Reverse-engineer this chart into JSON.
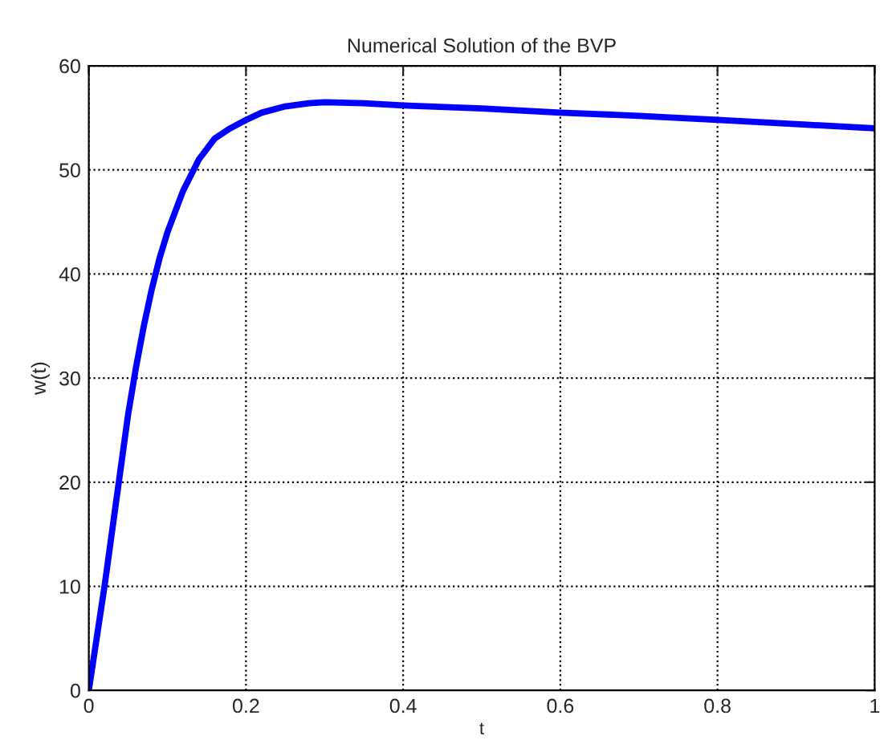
{
  "chart_data": {
    "type": "line",
    "title": "Numerical Solution of the BVP",
    "xlabel": "t",
    "ylabel": "w(t)",
    "x": [
      0,
      0.01,
      0.02,
      0.03,
      0.04,
      0.05,
      0.06,
      0.07,
      0.08,
      0.09,
      0.1,
      0.12,
      0.14,
      0.16,
      0.18,
      0.2,
      0.22,
      0.25,
      0.28,
      0.3,
      0.35,
      0.4,
      0.5,
      0.6,
      0.7,
      0.8,
      0.9,
      1.0
    ],
    "series": [
      {
        "color": "#0000ff",
        "values": [
          0,
          5,
          10,
          15.5,
          21,
          26.5,
          31,
          35,
          38.5,
          41.5,
          44,
          48,
          51,
          53,
          54,
          54.8,
          55.5,
          56.1,
          56.4,
          56.5,
          56.4,
          56.2,
          55.9,
          55.5,
          55.2,
          54.8,
          54.4,
          54
        ]
      }
    ],
    "xlim": [
      0,
      1
    ],
    "ylim": [
      0,
      60
    ],
    "xticks": [
      0,
      0.2,
      0.4,
      0.6,
      0.8,
      1
    ],
    "yticks": [
      0,
      10,
      20,
      30,
      40,
      50,
      60
    ],
    "grid": true,
    "line_style": "solid",
    "marker": "none"
  }
}
